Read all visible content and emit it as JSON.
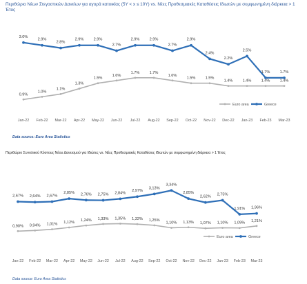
{
  "titles": {
    "top": "Περιθώριο Νέων Στεγαστικών Δανείων για αγορά κατοικίας (5Y < x ≤ 10Y) vs. Νέες Προθεσμιακές Καταθέσεις Ιδιωτών με συμφωνημένη διάρκεια > 1 Έτος",
    "bottom": "Περιθώριο Συνολικού Κόστους Νέου Δανεισμού για Ιδιώτες vs. Νέες Προθεσμιακές Καταθέσεις Ιδιωτών με συμφωνημένη διάρκεια > 1 Έτος"
  },
  "sources": {
    "top": "Data source: Euro Area Statistics",
    "bottom": "Data source: Euro Area Statistics"
  },
  "chart_data": [
    {
      "type": "line",
      "title": "Περιθώριο Νέων Στεγαστικών Δανείων για αγορά κατοικίας (5Y < x ≤ 10Y) vs. Νέες Προθεσμιακές Καταθέσεις Ιδιωτών με συμφωνημένη διάρκεια > 1 Έτος",
      "categories": [
        "Jan-22",
        "Feb-22",
        "Mar-22",
        "Apr-22",
        "May-22",
        "Jun-22",
        "Jul-22",
        "Aug-22",
        "Sep-22",
        "Oct-22",
        "Nov-22",
        "Dec-22",
        "Jan-23",
        "Feb-23",
        "Mar-23"
      ],
      "series": [
        {
          "name": "Euro area",
          "color": "#b0b0b0",
          "values": [
            0.9,
            1.0,
            1.1,
            1.3,
            1.5,
            1.6,
            1.7,
            1.7,
            1.6,
            1.5,
            1.5,
            1.4,
            1.4,
            1.4,
            1.4
          ],
          "labels": [
            "0.9%",
            "1.0%",
            "1.1%",
            "1.3%",
            "1.5%",
            "1.6%",
            "1.7%",
            "1.7%",
            "1.6%",
            "1.5%",
            "1.5%",
            "1.4%",
            "1.4%",
            "1.4%",
            "1.4%"
          ]
        },
        {
          "name": "Greece",
          "color": "#2e6fb7",
          "values": [
            3.0,
            2.9,
            2.8,
            2.9,
            2.9,
            2.7,
            2.9,
            2.9,
            2.7,
            2.9,
            2.4,
            2.2,
            2.5,
            1.7,
            1.7
          ],
          "labels": [
            "3.0%",
            "2.9%",
            "2.8%",
            "2.9%",
            "2.9%",
            "2.7%",
            "2.9%",
            "2.9%",
            "2.7%",
            "2.9%",
            "2.4%",
            "2.2%",
            "2.5%",
            "1.7%",
            "1.7%"
          ]
        }
      ],
      "ylim": [
        0.5,
        3.3
      ],
      "grid": false,
      "legend": "bottom-right"
    },
    {
      "type": "line",
      "title": "Περιθώριο Συνολικού Κόστους Νέου Δανεισμού για Ιδιώτες vs. Νέες Προθεσμιακές Καταθέσεις Ιδιωτών με συμφωνημένη διάρκεια > 1 Έτος",
      "categories": [
        "Jan-22",
        "Feb-22",
        "Mar-22",
        "Apr-22",
        "May-22",
        "Jun-22",
        "Jul-22",
        "Aug-22",
        "Sep-22",
        "Oct-22",
        "Nov-22",
        "Dec-22",
        "Jan-23",
        "Feb-23",
        "Mar-23"
      ],
      "series": [
        {
          "name": "Euro area",
          "color": "#b0b0b0",
          "values": [
            0.9,
            0.94,
            1.01,
            1.12,
            1.24,
            1.33,
            1.35,
            1.32,
            1.25,
            1.1,
            1.13,
            1.07,
            1.1,
            1.09,
            1.21
          ],
          "labels": [
            "0,90%",
            "0,94%",
            "1,01%",
            "1,12%",
            "1,24%",
            "1,33%",
            "1,35%",
            "1,32%",
            "1,25%",
            "1,10%",
            "1,13%",
            "1,07%",
            "1,10%",
            "1,09%",
            "1,21%"
          ]
        },
        {
          "name": "Greece",
          "color": "#2e6fb7",
          "values": [
            2.67,
            2.64,
            2.67,
            2.85,
            2.76,
            2.75,
            2.84,
            2.97,
            3.13,
            3.34,
            2.85,
            2.62,
            2.75,
            1.91,
            1.96
          ],
          "labels": [
            "2,67%",
            "2,64%",
            "2,67%",
            "2,85%",
            "2,76%",
            "2,75%",
            "2,84%",
            "2,97%",
            "3,13%",
            "3,34%",
            "2,85%",
            "2,62%",
            "2,75%",
            "1,91%",
            "1,96%"
          ]
        }
      ],
      "ylim": [
        0.5,
        3.6
      ],
      "grid": false,
      "legend": "bottom-right"
    }
  ]
}
